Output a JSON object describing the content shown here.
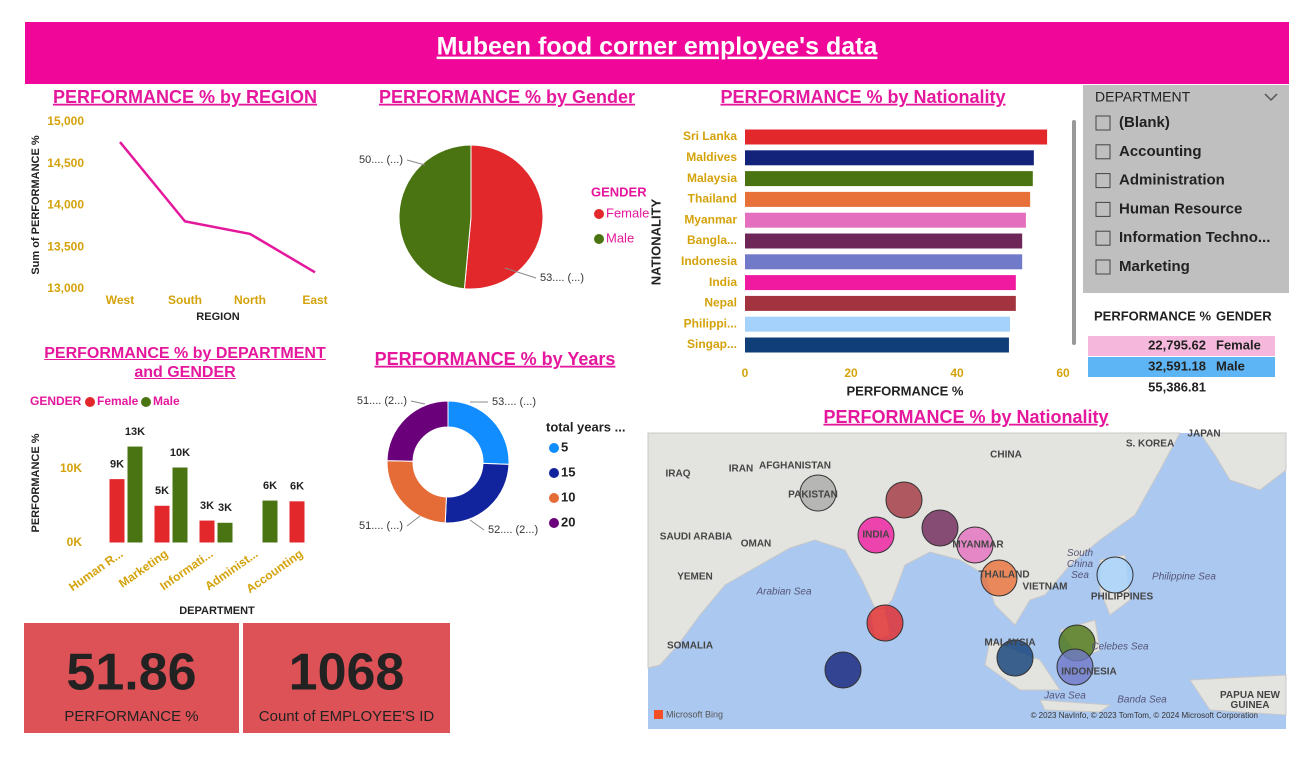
{
  "title": "Mubeen food corner employee's data",
  "chart_data": [
    {
      "type": "line",
      "title": "PERFORMANCE % by REGION",
      "x_label": "REGION",
      "y_label": "Sum of PERFORMANCE %",
      "categories": [
        "West",
        "South",
        "North",
        "East"
      ],
      "values": [
        14760,
        13810,
        13660,
        13200
      ],
      "color": "#e5179c",
      "ylim": [
        13000,
        15000
      ],
      "grid": false,
      "yticks": [
        {
          "value": 13000,
          "label": "13,000"
        },
        {
          "value": 13500,
          "label": "13,500"
        },
        {
          "value": 14000,
          "label": "14,000"
        },
        {
          "value": 14500,
          "label": "14,500"
        },
        {
          "value": 15000,
          "label": "15,000"
        }
      ]
    },
    {
      "type": "pie",
      "title": "PERFORMANCE % by Gender",
      "legend_title": "GENDER",
      "categories": [
        "Female",
        "Male"
      ],
      "values": [
        53,
        50
      ],
      "value_labels": [
        "53.... (...)",
        "50.... (...)"
      ],
      "colors": [
        "#e2282b",
        "#4a7411"
      ]
    },
    {
      "type": "bar",
      "orientation": "horizontal",
      "title": "PERFORMANCE % by Nationality",
      "x_label": "PERFORMANCE %",
      "y_label": "NATIONALITY",
      "categories": [
        "Sri Lanka",
        "Maldives",
        "Malaysia",
        "Thailand",
        "Myanmar",
        "Bangla...",
        "Indonesia",
        "India",
        "Nepal",
        "Philippi...",
        "Singap..."
      ],
      "values": [
        57.0,
        54.5,
        54.3,
        53.8,
        53.0,
        52.3,
        52.3,
        51.1,
        51.1,
        50.0,
        49.8
      ],
      "colors": [
        "#e2282b",
        "#14237a",
        "#4a7411",
        "#e8713a",
        "#e56fbf",
        "#6e2558",
        "#7179c9",
        "#ef1aa0",
        "#a3343f",
        "#a5d2fc",
        "#0f3e78"
      ],
      "xlim": [
        0,
        60
      ],
      "xticks": [
        0,
        20,
        40,
        60
      ],
      "grid": false
    },
    {
      "type": "bar",
      "orientation": "vertical",
      "title": "PERFORMANCE % by DEPARTMENT and GENDER",
      "legend_title": "GENDER",
      "x_label": "DEPARTMENT",
      "y_label": "PERFORMANCE %",
      "categories": [
        "Human R...",
        "Marketing",
        "Informati...",
        "Administ...",
        "Accounting"
      ],
      "series": [
        {
          "name": "Female",
          "color": "#e2282b",
          "values": [
            8700,
            5100,
            3100,
            null,
            5700
          ],
          "value_labels": [
            "9K",
            "5K",
            "3K",
            null,
            "6K"
          ]
        },
        {
          "name": "Male",
          "color": "#4a7411",
          "values": [
            13100,
            10270,
            2800,
            5800,
            null
          ],
          "value_labels": [
            "13K",
            "10K",
            "3K",
            "6K",
            null
          ]
        }
      ],
      "ylim": [
        0,
        15000
      ],
      "yticks": [
        {
          "value": 0,
          "label": "0K"
        },
        {
          "value": 10000,
          "label": "10K"
        }
      ],
      "grid": false
    },
    {
      "type": "donut",
      "title": "PERFORMANCE % by Years",
      "legend_title": "total years ...",
      "categories": [
        "5",
        "15",
        "10",
        "20"
      ],
      "values": [
        53,
        52,
        51,
        51
      ],
      "value_labels": [
        "53.... (...)",
        "52.... (2...)",
        "51.... (...)",
        "51.... (2...)"
      ],
      "colors": [
        "#118dff",
        "#12239e",
        "#e66c37",
        "#6b007b"
      ]
    }
  ],
  "slicer": {
    "title": "DEPARTMENT",
    "items": [
      "(Blank)",
      "Accounting",
      "Administration",
      "Human Resource",
      "Information Techno...",
      "Marketing"
    ]
  },
  "table": {
    "headers": [
      "PERFORMANCE %",
      "GENDER"
    ],
    "rows": [
      [
        "22,795.62",
        "Female"
      ],
      [
        "32,591.18",
        "Male"
      ]
    ],
    "total": "55,386.81"
  },
  "cards": [
    {
      "value": 51.86,
      "label": "PERFORMANCE %"
    },
    {
      "value": 1068,
      "label": "Count of EMPLOYEE'S ID"
    }
  ],
  "map": {
    "title": "PERFORMANCE % by Nationality",
    "labels": [
      "CHINA",
      "IRAN",
      "IRAQ",
      "AFGHANISTAN",
      "PAKISTAN",
      "INDIA",
      "MYANMAR",
      "THAILAND",
      "VIETNAM",
      "MALAYSIA",
      "INDONESIA",
      "PHILIPPINES",
      "S. KOREA",
      "JAPAN",
      "SAUDI ARABIA",
      "OMAN",
      "YEMEN",
      "SOMALIA",
      "Arabian Sea",
      "South China Sea",
      "Philippine Sea",
      "Celebes Sea",
      "Java Sea",
      "Banda Sea",
      "PAPUA NEW GUINEA"
    ],
    "attribution": "Microsoft Bing",
    "copyright": "© 2023 NavInfo, © 2023 TomTom, © 2024 Microsoft Corporation"
  }
}
